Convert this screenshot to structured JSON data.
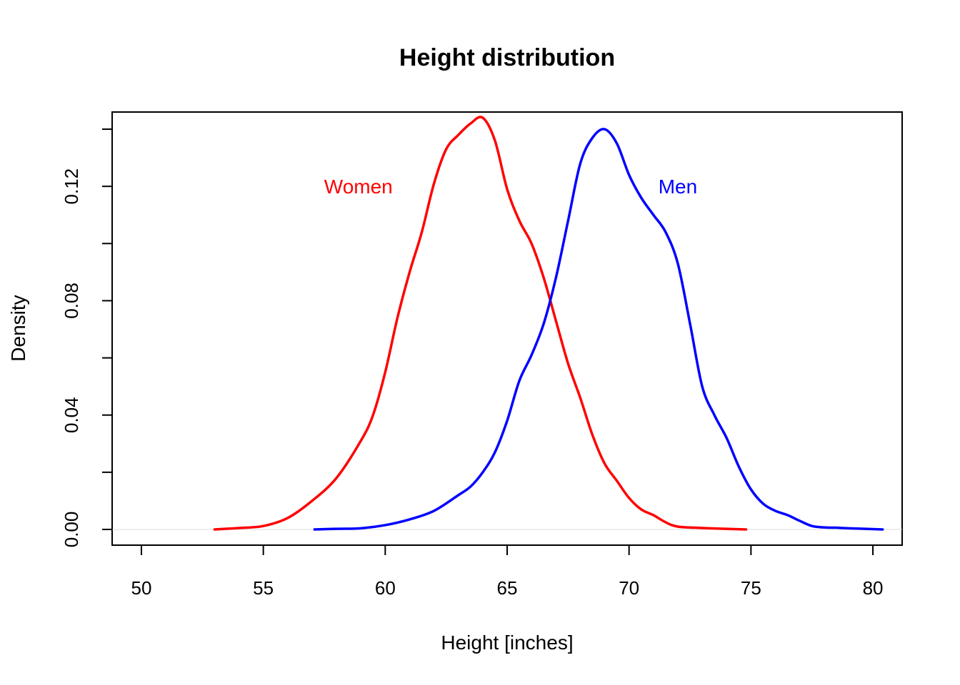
{
  "chart_data": {
    "type": "line",
    "title": "Height distribution",
    "xlabel": "Height [inches]",
    "ylabel": "Density",
    "xlim": [
      48.8,
      81.2
    ],
    "ylim": [
      -0.0055,
      0.146
    ],
    "xticks": [
      50,
      55,
      60,
      65,
      70,
      75,
      80
    ],
    "xtick_labels": [
      "50",
      "55",
      "60",
      "65",
      "70",
      "75",
      "80"
    ],
    "yticks": [
      0,
      0.02,
      0.04,
      0.06,
      0.08,
      0.1,
      0.12,
      0.14
    ],
    "ytick_labels": [
      "0.00",
      "",
      "0.04",
      "",
      "0.08",
      "",
      "0.12",
      ""
    ],
    "baseline": 0,
    "grid": false,
    "legend": "none",
    "series": [
      {
        "name": "Women",
        "color": "#ff0000",
        "label_at": [
          58.9,
          0.12
        ],
        "points": [
          [
            53.0,
            0.0
          ],
          [
            54.0,
            0.0005
          ],
          [
            55.0,
            0.0012
          ],
          [
            56.0,
            0.004
          ],
          [
            57.0,
            0.01
          ],
          [
            58.0,
            0.018
          ],
          [
            59.0,
            0.031
          ],
          [
            59.5,
            0.04
          ],
          [
            60.0,
            0.055
          ],
          [
            60.5,
            0.074
          ],
          [
            61.0,
            0.09
          ],
          [
            61.5,
            0.104
          ],
          [
            62.0,
            0.121
          ],
          [
            62.5,
            0.133
          ],
          [
            63.0,
            0.138
          ],
          [
            63.5,
            0.142
          ],
          [
            64.0,
            0.144
          ],
          [
            64.5,
            0.136
          ],
          [
            65.0,
            0.119
          ],
          [
            65.5,
            0.108
          ],
          [
            66.0,
            0.1
          ],
          [
            66.5,
            0.088
          ],
          [
            67.0,
            0.073
          ],
          [
            67.5,
            0.058
          ],
          [
            68.0,
            0.046
          ],
          [
            68.5,
            0.033
          ],
          [
            69.0,
            0.023
          ],
          [
            69.5,
            0.017
          ],
          [
            70.0,
            0.011
          ],
          [
            70.5,
            0.007
          ],
          [
            71.0,
            0.005
          ],
          [
            71.5,
            0.0025
          ],
          [
            72.0,
            0.001
          ],
          [
            73.0,
            0.0005
          ],
          [
            74.8,
            0.0
          ]
        ]
      },
      {
        "name": "Men",
        "color": "#0000ff",
        "label_at": [
          72.0,
          0.12
        ],
        "points": [
          [
            57.1,
            0.0
          ],
          [
            58.0,
            0.0002
          ],
          [
            59.0,
            0.0004
          ],
          [
            60.0,
            0.0015
          ],
          [
            61.0,
            0.0035
          ],
          [
            62.0,
            0.0065
          ],
          [
            63.0,
            0.012
          ],
          [
            63.5,
            0.015
          ],
          [
            64.0,
            0.02
          ],
          [
            64.5,
            0.027
          ],
          [
            65.0,
            0.038
          ],
          [
            65.5,
            0.052
          ],
          [
            66.0,
            0.061
          ],
          [
            66.5,
            0.072
          ],
          [
            67.0,
            0.088
          ],
          [
            67.5,
            0.108
          ],
          [
            68.0,
            0.128
          ],
          [
            68.5,
            0.137
          ],
          [
            69.0,
            0.14
          ],
          [
            69.5,
            0.135
          ],
          [
            70.0,
            0.124
          ],
          [
            70.5,
            0.116
          ],
          [
            71.0,
            0.11
          ],
          [
            71.5,
            0.104
          ],
          [
            72.0,
            0.093
          ],
          [
            72.5,
            0.072
          ],
          [
            73.0,
            0.05
          ],
          [
            73.5,
            0.04
          ],
          [
            74.0,
            0.032
          ],
          [
            74.5,
            0.022
          ],
          [
            75.0,
            0.014
          ],
          [
            75.5,
            0.009
          ],
          [
            76.0,
            0.0065
          ],
          [
            76.5,
            0.005
          ],
          [
            77.0,
            0.003
          ],
          [
            77.5,
            0.0012
          ],
          [
            78.0,
            0.0007
          ],
          [
            78.5,
            0.0006
          ],
          [
            79.0,
            0.0004
          ],
          [
            80.4,
            0.0
          ]
        ]
      }
    ]
  }
}
